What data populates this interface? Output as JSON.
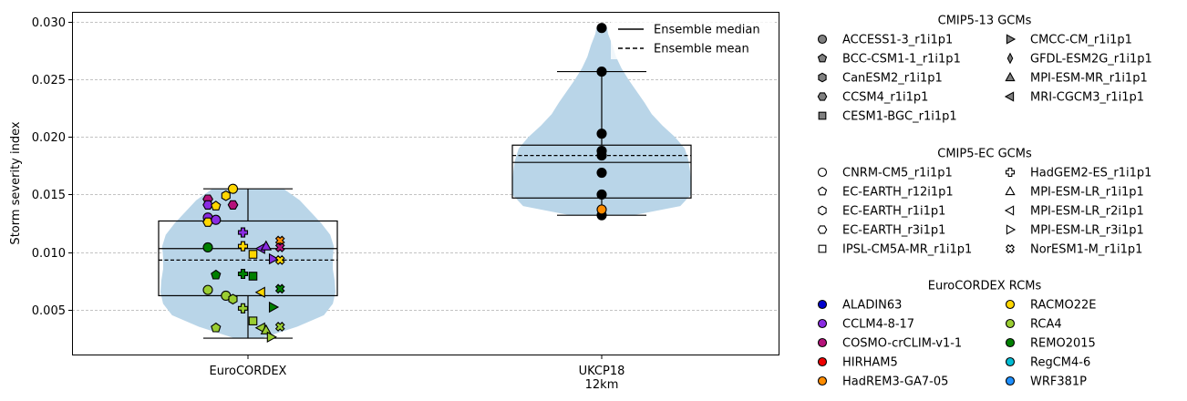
{
  "chart_data": {
    "type": "violin",
    "title": "",
    "xlabel": "",
    "ylabel": "Storm severity index",
    "ylim": [
      0.001,
      0.0309
    ],
    "yticks": [
      "0.005",
      "0.010",
      "0.015",
      "0.020",
      "0.025",
      "0.030"
    ],
    "grid": "horizontal dashed",
    "categories": [
      "EuroCORDEX",
      "UKCP18 12km"
    ],
    "category_labels": [
      [
        "EuroCORDEX"
      ],
      [
        "UKCP18",
        "12km"
      ]
    ],
    "violin_color": "#b9d5e8",
    "boxes": [
      {
        "category": "EuroCORDEX",
        "whisker_low": 0.0025,
        "q1": 0.0062,
        "median": 0.0103,
        "q3": 0.0127,
        "whisker_high": 0.0155,
        "mean": 0.0093
      },
      {
        "category": "UKCP18 12km",
        "whisker_low": 0.0132,
        "q1": 0.0147,
        "median": 0.0178,
        "q3": 0.0193,
        "whisker_high": 0.0257,
        "mean": 0.0184
      }
    ],
    "violins": [
      {
        "category": "EuroCORDEX",
        "min": 0.0025,
        "max": 0.0155,
        "profile": [
          [
            0.0025,
            0.15
          ],
          [
            0.0035,
            0.55
          ],
          [
            0.0045,
            0.85
          ],
          [
            0.0055,
            0.95
          ],
          [
            0.0065,
            0.98
          ],
          [
            0.0075,
            0.97
          ],
          [
            0.0085,
            0.95
          ],
          [
            0.0095,
            0.95
          ],
          [
            0.0105,
            0.96
          ],
          [
            0.0115,
            0.92
          ],
          [
            0.0125,
            0.82
          ],
          [
            0.0135,
            0.7
          ],
          [
            0.0145,
            0.58
          ],
          [
            0.0155,
            0.4
          ]
        ]
      },
      {
        "category": "UKCP18 12km",
        "min": 0.0132,
        "max": 0.0295,
        "profile": [
          [
            0.0132,
            0.35
          ],
          [
            0.014,
            0.88
          ],
          [
            0.015,
            1.0
          ],
          [
            0.016,
            1.0
          ],
          [
            0.017,
            0.99
          ],
          [
            0.018,
            0.97
          ],
          [
            0.019,
            0.93
          ],
          [
            0.02,
            0.82
          ],
          [
            0.021,
            0.68
          ],
          [
            0.022,
            0.56
          ],
          [
            0.023,
            0.48
          ],
          [
            0.024,
            0.39
          ],
          [
            0.025,
            0.3
          ],
          [
            0.026,
            0.22
          ],
          [
            0.027,
            0.16
          ],
          [
            0.028,
            0.12
          ],
          [
            0.029,
            0.07
          ],
          [
            0.0295,
            0.06
          ]
        ]
      }
    ],
    "points": [
      {
        "category": "EuroCORDEX",
        "offset": -0.4,
        "y": 0.0146,
        "rcm": "COSMO-crCLIM-v1-1",
        "gcm": "CCSM4_r1i1p1"
      },
      {
        "category": "EuroCORDEX",
        "offset": -0.4,
        "y": 0.0141,
        "rcm": "CCLM4-8-17",
        "gcm": "CCSM4_r1i1p1"
      },
      {
        "category": "EuroCORDEX",
        "offset": -0.4,
        "y": 0.013,
        "rcm": "CCLM4-8-17",
        "gcm": "ACCESS1-3_r1i1p1"
      },
      {
        "category": "EuroCORDEX",
        "offset": -0.4,
        "y": 0.0126,
        "rcm": "RACMO22E",
        "gcm": "EC-EARTH_r3i1p1"
      },
      {
        "category": "EuroCORDEX",
        "offset": -0.4,
        "y": 0.0104,
        "rcm": "REMO2015",
        "gcm": "ACCESS1-3_r1i1p1"
      },
      {
        "category": "EuroCORDEX",
        "offset": -0.4,
        "y": 0.0067,
        "rcm": "RCA4",
        "gcm": "ACCESS1-3_r1i1p1"
      },
      {
        "category": "EuroCORDEX",
        "offset": -0.32,
        "y": 0.014,
        "rcm": "RACMO22E",
        "gcm": "EC-EARTH_r12i1p1"
      },
      {
        "category": "EuroCORDEX",
        "offset": -0.32,
        "y": 0.0128,
        "rcm": "CCLM4-8-17",
        "gcm": "ACCESS1-3_r1i1p1"
      },
      {
        "category": "EuroCORDEX",
        "offset": -0.32,
        "y": 0.008,
        "rcm": "REMO2015",
        "gcm": "BCC-CSM1-1_r1i1p1"
      },
      {
        "category": "EuroCORDEX",
        "offset": -0.32,
        "y": 0.0034,
        "rcm": "RCA4",
        "gcm": "BCC-CSM1-1_r1i1p1"
      },
      {
        "category": "EuroCORDEX",
        "offset": -0.22,
        "y": 0.0149,
        "rcm": "RACMO22E",
        "gcm": "CanESM2_r1i1p1"
      },
      {
        "category": "EuroCORDEX",
        "offset": -0.22,
        "y": 0.0062,
        "rcm": "RCA4",
        "gcm": "ACCESS1-3_r1i1p1"
      },
      {
        "category": "EuroCORDEX",
        "offset": -0.15,
        "y": 0.0155,
        "rcm": "RACMO22E",
        "gcm": "ACCESS1-3_r1i1p1"
      },
      {
        "category": "EuroCORDEX",
        "offset": -0.15,
        "y": 0.0141,
        "rcm": "COSMO-crCLIM-v1-1",
        "gcm": "CCSM4_r1i1p1"
      },
      {
        "category": "EuroCORDEX",
        "offset": -0.15,
        "y": 0.0059,
        "rcm": "RCA4",
        "gcm": "CanESM2_r1i1p1"
      },
      {
        "category": "EuroCORDEX",
        "offset": -0.05,
        "y": 0.0117,
        "rcm": "CCLM4-8-17",
        "gcm": "HadGEM2-ES_r1i1p1"
      },
      {
        "category": "EuroCORDEX",
        "offset": -0.05,
        "y": 0.0105,
        "rcm": "RACMO22E",
        "gcm": "HadGEM2-ES_r1i1p1"
      },
      {
        "category": "EuroCORDEX",
        "offset": -0.05,
        "y": 0.0081,
        "rcm": "REMO2015",
        "gcm": "HadGEM2-ES_r1i1p1"
      },
      {
        "category": "EuroCORDEX",
        "offset": -0.05,
        "y": 0.0051,
        "rcm": "RCA4",
        "gcm": "HadGEM2-ES_r1i1p1"
      },
      {
        "category": "EuroCORDEX",
        "offset": 0.05,
        "y": 0.0098,
        "rcm": "RACMO22E",
        "gcm": "CESM1-BGC_r1i1p1"
      },
      {
        "category": "EuroCORDEX",
        "offset": 0.05,
        "y": 0.0079,
        "rcm": "REMO2015",
        "gcm": "CESM1-BGC_r1i1p1"
      },
      {
        "category": "EuroCORDEX",
        "offset": 0.05,
        "y": 0.004,
        "rcm": "RCA4",
        "gcm": "IPSL-CM5A-MR_r1i1p1"
      },
      {
        "category": "EuroCORDEX",
        "offset": 0.13,
        "y": 0.0103,
        "rcm": "CCLM4-8-17",
        "gcm": "MRI-CGCM3_r1i1p1"
      },
      {
        "category": "EuroCORDEX",
        "offset": 0.13,
        "y": 0.0065,
        "rcm": "RACMO22E",
        "gcm": "MPI-ESM-LR_r2i1p1"
      },
      {
        "category": "EuroCORDEX",
        "offset": 0.13,
        "y": 0.0034,
        "rcm": "RCA4",
        "gcm": "MRI-CGCM3_r1i1p1"
      },
      {
        "category": "EuroCORDEX",
        "offset": 0.18,
        "y": 0.0105,
        "rcm": "CCLM4-8-17",
        "gcm": "MPI-ESM-MR_r1i1p1"
      },
      {
        "category": "EuroCORDEX",
        "offset": 0.18,
        "y": 0.0032,
        "rcm": "RCA4",
        "gcm": "MPI-ESM-LR_r1i1p1"
      },
      {
        "category": "EuroCORDEX",
        "offset": 0.23,
        "y": 0.0026,
        "rcm": "RCA4",
        "gcm": "MPI-ESM-LR_r3i1p1"
      },
      {
        "category": "EuroCORDEX",
        "offset": 0.25,
        "y": 0.0094,
        "rcm": "CCLM4-8-17",
        "gcm": "CMCC-CM_r1i1p1"
      },
      {
        "category": "EuroCORDEX",
        "offset": 0.25,
        "y": 0.0052,
        "rcm": "REMO2015",
        "gcm": "MPI-ESM-LR_r3i1p1"
      },
      {
        "category": "EuroCORDEX",
        "offset": 0.32,
        "y": 0.011,
        "rcm": "HadREM3-GA7-05",
        "gcm": "NorESM1-M_r1i1p1"
      },
      {
        "category": "EuroCORDEX",
        "offset": 0.32,
        "y": 0.0104,
        "rcm": "COSMO-crCLIM-v1-1",
        "gcm": "NorESM1-M_r1i1p1"
      },
      {
        "category": "EuroCORDEX",
        "offset": 0.32,
        "y": 0.0093,
        "rcm": "RACMO22E",
        "gcm": "NorESM1-M_r1i1p1"
      },
      {
        "category": "EuroCORDEX",
        "offset": 0.32,
        "y": 0.0068,
        "rcm": "REMO2015",
        "gcm": "NorESM1-M_r1i1p1"
      },
      {
        "category": "EuroCORDEX",
        "offset": 0.32,
        "y": 0.0035,
        "rcm": "RCA4",
        "gcm": "NorESM1-M_r1i1p1"
      },
      {
        "category": "UKCP18 12km",
        "offset": 0,
        "y": 0.0295,
        "marker": "black-circle"
      },
      {
        "category": "UKCP18 12km",
        "offset": 0,
        "y": 0.0257,
        "marker": "black-circle"
      },
      {
        "category": "UKCP18 12km",
        "offset": 0,
        "y": 0.0203,
        "marker": "black-circle"
      },
      {
        "category": "UKCP18 12km",
        "offset": 0,
        "y": 0.0188,
        "marker": "black-circle"
      },
      {
        "category": "UKCP18 12km",
        "offset": 0,
        "y": 0.0184,
        "marker": "black-circle"
      },
      {
        "category": "UKCP18 12km",
        "offset": 0,
        "y": 0.0169,
        "marker": "black-circle"
      },
      {
        "category": "UKCP18 12km",
        "offset": 0,
        "y": 0.015,
        "marker": "black-circle"
      },
      {
        "category": "UKCP18 12km",
        "offset": 0,
        "y": 0.0132,
        "marker": "black-circle"
      },
      {
        "category": "UKCP18 12km",
        "offset": 0,
        "y": 0.0137,
        "rcm": "HadREM3-GA7-05",
        "gcm": "ACCESS1-3_r1i1p1"
      }
    ],
    "inner_legend": {
      "placement": "top-right",
      "entries": [
        {
          "label": "Ensemble median",
          "style": "solid"
        },
        {
          "label": "Ensemble mean",
          "style": "dashed"
        }
      ]
    },
    "legend_groups": [
      {
        "title": "CMIP5-13 GCMs",
        "fill": "#808080",
        "entries": [
          {
            "label": "ACCESS1-3_r1i1p1",
            "marker": "circle"
          },
          {
            "label": "BCC-CSM1-1_r1i1p1",
            "marker": "pentagon"
          },
          {
            "label": "CanESM2_r1i1p1",
            "marker": "hexagon"
          },
          {
            "label": "CCSM4_r1i1p1",
            "marker": "hexagon2"
          },
          {
            "label": "CESM1-BGC_r1i1p1",
            "marker": "square"
          },
          {
            "label": "CMCC-CM_r1i1p1",
            "marker": "triangle-right"
          },
          {
            "label": "GFDL-ESM2G_r1i1p1",
            "marker": "thin-diamond"
          },
          {
            "label": "MPI-ESM-MR_r1i1p1",
            "marker": "triangle-up"
          },
          {
            "label": "MRI-CGCM3_r1i1p1",
            "marker": "triangle-left"
          }
        ]
      },
      {
        "title": "CMIP5-EC GCMs",
        "fill": "#ffffff",
        "entries": [
          {
            "label": "CNRM-CM5_r1i1p1",
            "marker": "circle"
          },
          {
            "label": "EC-EARTH_r12i1p1",
            "marker": "pentagon"
          },
          {
            "label": "EC-EARTH_r1i1p1",
            "marker": "hexagon"
          },
          {
            "label": "EC-EARTH_r3i1p1",
            "marker": "hexagon2"
          },
          {
            "label": "IPSL-CM5A-MR_r1i1p1",
            "marker": "square"
          },
          {
            "label": "HadGEM2-ES_r1i1p1",
            "marker": "plus"
          },
          {
            "label": "MPI-ESM-LR_r1i1p1",
            "marker": "triangle-up"
          },
          {
            "label": "MPI-ESM-LR_r2i1p1",
            "marker": "triangle-left"
          },
          {
            "label": "MPI-ESM-LR_r3i1p1",
            "marker": "triangle-right"
          },
          {
            "label": "NorESM1-M_r1i1p1",
            "marker": "x"
          }
        ]
      },
      {
        "title": "EuroCORDEX RCMs",
        "entries": [
          {
            "label": "ALADIN63",
            "color": "#0000cc"
          },
          {
            "label": "CCLM4-8-17",
            "color": "#8a2be2"
          },
          {
            "label": "COSMO-crCLIM-v1-1",
            "color": "#b5127a"
          },
          {
            "label": "HIRHAM5",
            "color": "#ee0000"
          },
          {
            "label": "HadREM3-GA7-05",
            "color": "#ff8c00"
          },
          {
            "label": "RACMO22E",
            "color": "#ffd700"
          },
          {
            "label": "RCA4",
            "color": "#9acd32"
          },
          {
            "label": "REMO2015",
            "color": "#008000"
          },
          {
            "label": "RegCM4-6",
            "color": "#00bcd4"
          },
          {
            "label": "WRF381P",
            "color": "#1e90ff"
          }
        ]
      }
    ]
  }
}
